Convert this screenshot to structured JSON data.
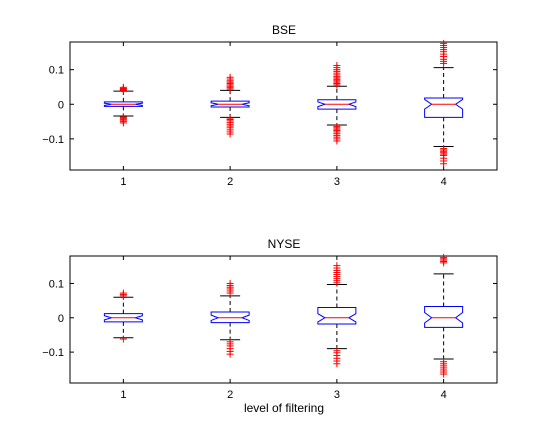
{
  "figure": {
    "xlabel": "level of filtering"
  },
  "chart_data": [
    {
      "type": "box",
      "title": "BSE",
      "categories": [
        "1",
        "2",
        "3",
        "4"
      ],
      "ylim": [
        -0.19,
        0.18
      ],
      "yticks": [
        -0.1,
        0,
        0.1
      ],
      "ytick_labels": [
        "−0.1",
        "0",
        "0.1"
      ],
      "notched": true,
      "grid": false,
      "colors": {
        "box": "#0000ff",
        "median": "#ff0000",
        "whisker": "#000000",
        "outlier": "#ff0000"
      },
      "boxes": [
        {
          "label": "1",
          "q1": -0.006,
          "median": 0.0,
          "q3": 0.007,
          "whisker_low": -0.034,
          "whisker_high": 0.038,
          "outliers": [
            0.04,
            0.042,
            0.044,
            0.046,
            0.049,
            -0.037,
            -0.04,
            -0.043,
            -0.046,
            -0.05,
            -0.054
          ]
        },
        {
          "label": "2",
          "q1": -0.008,
          "median": 0.0,
          "q3": 0.009,
          "whisker_low": -0.038,
          "whisker_high": 0.04,
          "outliers": [
            0.044,
            0.048,
            0.052,
            0.056,
            0.06,
            0.064,
            0.068,
            0.073,
            0.078,
            -0.04,
            -0.044,
            -0.048,
            -0.053,
            -0.058,
            -0.063,
            -0.068,
            -0.074,
            -0.08,
            -0.086
          ]
        },
        {
          "label": "3",
          "q1": -0.014,
          "median": 0.0,
          "q3": 0.013,
          "whisker_low": -0.06,
          "whisker_high": 0.052,
          "outliers": [
            0.056,
            0.06,
            0.064,
            0.068,
            0.072,
            0.076,
            0.08,
            0.085,
            0.09,
            0.095,
            0.1,
            0.106,
            0.112,
            -0.064,
            -0.068,
            -0.072,
            -0.076,
            -0.08,
            -0.085,
            -0.09,
            -0.095,
            -0.1,
            -0.106
          ]
        },
        {
          "label": "4",
          "q1": -0.038,
          "median": 0.0,
          "q3": 0.018,
          "whisker_low": -0.122,
          "whisker_high": 0.106,
          "outliers": [
            0.118,
            0.124,
            0.13,
            0.138,
            0.145,
            0.152,
            0.158,
            0.164,
            0.17,
            0.176,
            -0.128,
            -0.132,
            -0.136,
            -0.14,
            -0.144,
            -0.148,
            -0.156,
            -0.164,
            -0.172
          ]
        }
      ]
    },
    {
      "type": "box",
      "title": "NYSE",
      "categories": [
        "1",
        "2",
        "3",
        "4"
      ],
      "ylim": [
        -0.19,
        0.18
      ],
      "yticks": [
        -0.1,
        0,
        0.1
      ],
      "ytick_labels": [
        "−0.1",
        "0",
        "0.1"
      ],
      "notched": true,
      "grid": false,
      "colors": {
        "box": "#0000ff",
        "median": "#ff0000",
        "whisker": "#000000",
        "outlier": "#ff0000"
      },
      "boxes": [
        {
          "label": "1",
          "q1": -0.012,
          "median": 0.0,
          "q3": 0.012,
          "whisker_low": -0.058,
          "whisker_high": 0.06,
          "outliers": [
            0.064,
            0.068,
            0.072,
            -0.062
          ]
        },
        {
          "label": "2",
          "q1": -0.014,
          "median": 0.0,
          "q3": 0.017,
          "whisker_low": -0.064,
          "whisker_high": 0.064,
          "outliers": [
            0.072,
            0.078,
            0.084,
            0.089,
            0.094,
            0.1,
            -0.07,
            -0.076,
            -0.082,
            -0.09,
            -0.098,
            -0.106
          ]
        },
        {
          "label": "3",
          "q1": -0.018,
          "median": 0.0,
          "q3": 0.03,
          "whisker_low": -0.09,
          "whisker_high": 0.097,
          "outliers": [
            0.102,
            0.108,
            0.114,
            0.12,
            0.126,
            0.132,
            0.138,
            0.145,
            0.152,
            -0.096,
            -0.102,
            -0.11,
            -0.118,
            -0.126,
            -0.134
          ]
        },
        {
          "label": "4",
          "q1": -0.028,
          "median": 0.0,
          "q3": 0.033,
          "whisker_low": -0.12,
          "whisker_high": 0.128,
          "outliers": [
            0.16,
            0.164,
            0.168,
            0.172,
            0.176,
            -0.128,
            -0.134,
            -0.14,
            -0.146,
            -0.152,
            -0.158,
            -0.164
          ]
        }
      ]
    }
  ]
}
